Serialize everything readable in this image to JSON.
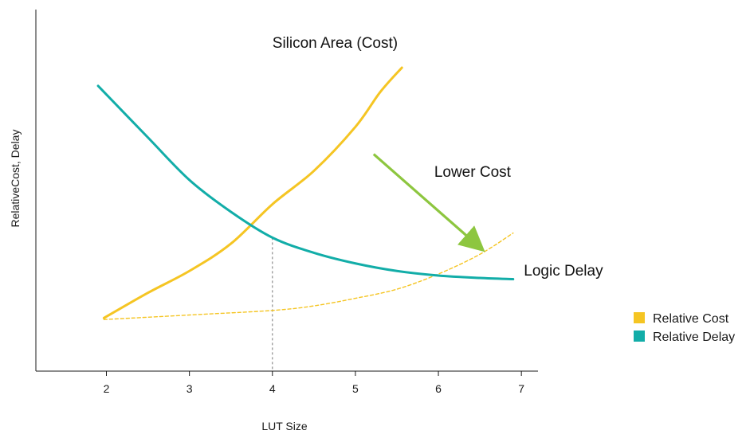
{
  "chart_data": {
    "type": "line",
    "title": "",
    "xlabel": "LUT Size",
    "ylabel": "RelativeCost, Delay",
    "xlim": [
      1.15,
      7.2
    ],
    "ylim": [
      0,
      1
    ],
    "x_ticks": [
      2,
      3,
      4,
      5,
      6,
      7
    ],
    "grid": false,
    "y_ticks_shown": false,
    "legend_position": "bottom-right",
    "colors": {
      "cost": "#F5C523",
      "delay": "#12ADA8",
      "arrow": "#8DC63F",
      "guide": "#8C8C8C",
      "axis": "#1a1a1a"
    },
    "series": [
      {
        "name": "Relative Cost",
        "role": "cost",
        "style": "solid",
        "x": [
          1.97,
          2.5,
          3.0,
          3.5,
          4.0,
          4.5,
          5.0,
          5.3,
          5.56
        ],
        "y": [
          0.175,
          0.258,
          0.33,
          0.42,
          0.55,
          0.66,
          0.805,
          0.92,
          1.0
        ]
      },
      {
        "name": "Relative Delay",
        "role": "delay",
        "style": "solid",
        "x": [
          1.9,
          2.5,
          3.0,
          3.5,
          4.0,
          4.5,
          5.0,
          5.5,
          6.0,
          6.5,
          6.9
        ],
        "y": [
          0.94,
          0.77,
          0.63,
          0.525,
          0.44,
          0.39,
          0.355,
          0.33,
          0.315,
          0.307,
          0.303
        ]
      },
      {
        "role": "cost_lowered",
        "style": "dashed",
        "x": [
          1.97,
          3.0,
          4.0,
          4.5,
          5.0,
          5.5,
          6.0,
          6.5,
          6.9
        ],
        "y": [
          0.17,
          0.185,
          0.2,
          0.215,
          0.24,
          0.27,
          0.32,
          0.385,
          0.455
        ]
      }
    ],
    "guides": [
      {
        "type": "vertical_dashed",
        "x": 4.0,
        "from_y": 0.0,
        "to_y": 0.44
      }
    ],
    "arrows": [
      {
        "from": [
          5.22,
          0.715
        ],
        "to": [
          6.47,
          0.415
        ]
      }
    ],
    "annotations": [
      {
        "text": "Silicon Area (Cost)",
        "x": 4.0,
        "y": 1.065,
        "anchor": "start"
      },
      {
        "text": "Lower Cost",
        "x": 5.95,
        "y": 0.64,
        "anchor": "start"
      },
      {
        "text": "Logic Delay",
        "x": 7.03,
        "y": 0.315,
        "anchor": "start"
      }
    ],
    "legend": [
      {
        "label": "Relative Cost",
        "role": "cost"
      },
      {
        "label": "Relative Delay",
        "role": "delay"
      }
    ]
  }
}
